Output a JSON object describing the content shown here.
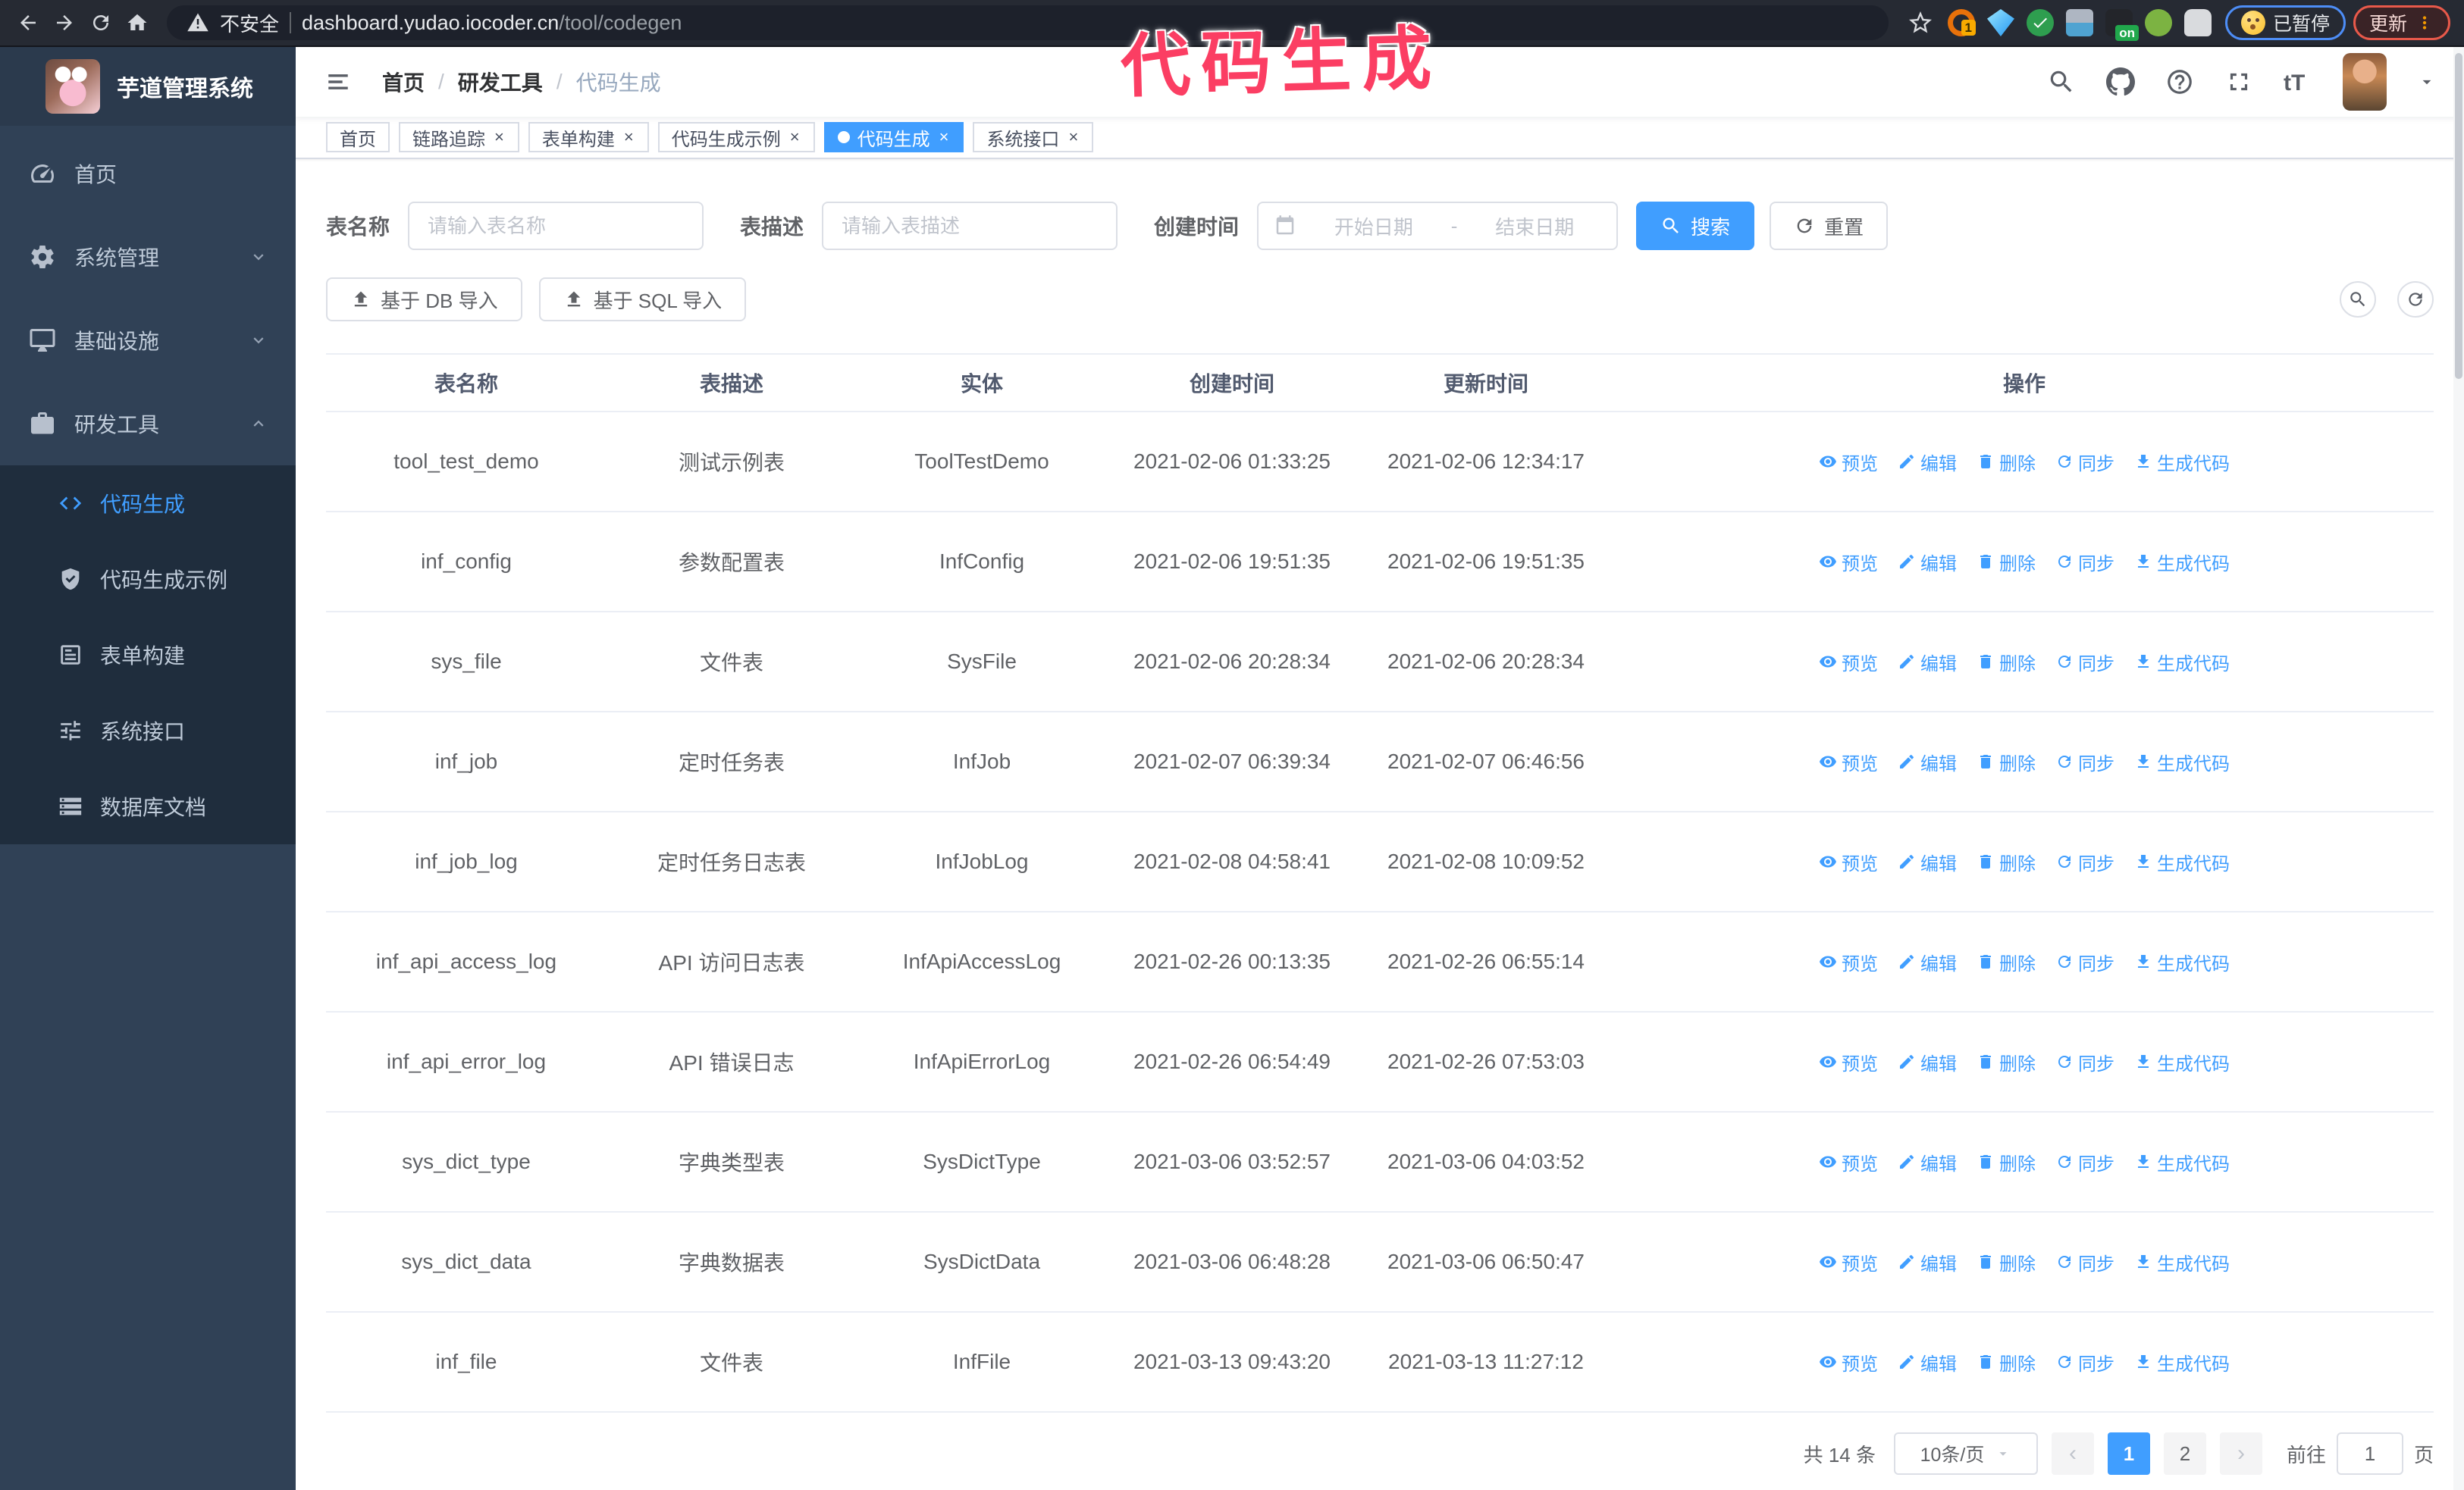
{
  "browser": {
    "security_label": "不安全",
    "url_domain": "dashboard.yudao.iocoder.cn",
    "url_path": "/tool/codegen",
    "paused_badge": "已暂停",
    "update_button": "更新",
    "extension_badge_1": "1",
    "extension_badge_on": "on"
  },
  "watermark": "代码生成",
  "sidebar": {
    "app_title": "芋道管理系统",
    "items": [
      {
        "key": "home",
        "label": "首页",
        "icon": "dashboard-icon"
      },
      {
        "key": "system",
        "label": "系统管理",
        "icon": "gear-icon",
        "chevron": "down"
      },
      {
        "key": "infra",
        "label": "基础设施",
        "icon": "monitor-icon",
        "chevron": "down"
      },
      {
        "key": "devtools",
        "label": "研发工具",
        "icon": "toolbox-icon",
        "chevron": "up"
      }
    ],
    "subitems": [
      {
        "key": "codegen",
        "label": "代码生成",
        "icon": "code-icon",
        "active": true
      },
      {
        "key": "codegen-example",
        "label": "代码生成示例",
        "icon": "shield-check-icon"
      },
      {
        "key": "form-builder",
        "label": "表单构建",
        "icon": "form-icon"
      },
      {
        "key": "system-api",
        "label": "系统接口",
        "icon": "sliders-icon"
      },
      {
        "key": "db-doc",
        "label": "数据库文档",
        "icon": "database-icon"
      }
    ]
  },
  "navbar": {
    "breadcrumb": [
      "首页",
      "研发工具",
      "代码生成"
    ],
    "separator": "/"
  },
  "tabs": [
    {
      "key": "home",
      "label": "首页",
      "closable": false,
      "active": false
    },
    {
      "key": "trace",
      "label": "链路追踪",
      "closable": true,
      "active": false
    },
    {
      "key": "form-builder",
      "label": "表单构建",
      "closable": true,
      "active": false
    },
    {
      "key": "codegen-example",
      "label": "代码生成示例",
      "closable": true,
      "active": false
    },
    {
      "key": "codegen",
      "label": "代码生成",
      "closable": true,
      "active": true
    },
    {
      "key": "system-api",
      "label": "系统接口",
      "closable": true,
      "active": false
    }
  ],
  "search_form": {
    "table_name_label": "表名称",
    "table_name_placeholder": "请输入表名称",
    "table_desc_label": "表描述",
    "table_desc_placeholder": "请输入表描述",
    "create_time_label": "创建时间",
    "start_placeholder": "开始日期",
    "range_separator": "-",
    "end_placeholder": "结束日期",
    "search_label": "搜索",
    "reset_label": "重置"
  },
  "toolbar": {
    "import_db_label": "基于 DB 导入",
    "import_sql_label": "基于 SQL 导入"
  },
  "table": {
    "columns": [
      "表名称",
      "表描述",
      "实体",
      "创建时间",
      "更新时间",
      "操作"
    ],
    "actions": [
      {
        "key": "preview",
        "label": "预览",
        "icon": "eye-icon"
      },
      {
        "key": "edit",
        "label": "编辑",
        "icon": "edit-icon"
      },
      {
        "key": "delete",
        "label": "删除",
        "icon": "delete-icon"
      },
      {
        "key": "sync",
        "label": "同步",
        "icon": "sync-icon"
      },
      {
        "key": "generate",
        "label": "生成代码",
        "icon": "download-icon"
      }
    ],
    "rows": [
      {
        "name": "tool_test_demo",
        "desc": "测试示例表",
        "entity": "ToolTestDemo",
        "created": "2021-02-06 01:33:25",
        "updated": "2021-02-06 12:34:17"
      },
      {
        "name": "inf_config",
        "desc": "参数配置表",
        "entity": "InfConfig",
        "created": "2021-02-06 19:51:35",
        "updated": "2021-02-06 19:51:35"
      },
      {
        "name": "sys_file",
        "desc": "文件表",
        "entity": "SysFile",
        "created": "2021-02-06 20:28:34",
        "updated": "2021-02-06 20:28:34"
      },
      {
        "name": "inf_job",
        "desc": "定时任务表",
        "entity": "InfJob",
        "created": "2021-02-07 06:39:34",
        "updated": "2021-02-07 06:46:56"
      },
      {
        "name": "inf_job_log",
        "desc": "定时任务日志表",
        "entity": "InfJobLog",
        "created": "2021-02-08 04:58:41",
        "updated": "2021-02-08 10:09:52"
      },
      {
        "name": "inf_api_access_log",
        "desc": "API 访问日志表",
        "entity": "InfApiAccessLog",
        "created": "2021-02-26 00:13:35",
        "updated": "2021-02-26 06:55:14"
      },
      {
        "name": "inf_api_error_log",
        "desc": "API 错误日志",
        "entity": "InfApiErrorLog",
        "created": "2021-02-26 06:54:49",
        "updated": "2021-02-26 07:53:03"
      },
      {
        "name": "sys_dict_type",
        "desc": "字典类型表",
        "entity": "SysDictType",
        "created": "2021-03-06 03:52:57",
        "updated": "2021-03-06 04:03:52"
      },
      {
        "name": "sys_dict_data",
        "desc": "字典数据表",
        "entity": "SysDictData",
        "created": "2021-03-06 06:48:28",
        "updated": "2021-03-06 06:50:47"
      },
      {
        "name": "inf_file",
        "desc": "文件表",
        "entity": "InfFile",
        "created": "2021-03-13 09:43:20",
        "updated": "2021-03-13 11:27:12"
      }
    ]
  },
  "pagination": {
    "total_label": "共 14 条",
    "page_size_label": "10条/页",
    "prev_label": "‹",
    "next_label": "›",
    "pages": [
      "1",
      "2"
    ],
    "active_page": "1",
    "goto_label": "前往",
    "goto_value": "1",
    "goto_suffix": "页"
  },
  "colors": {
    "accent": "#409eff",
    "watermark": "#fb3e63",
    "sidebar_bg": "#304156",
    "submenu_bg": "#1f2d3d"
  }
}
